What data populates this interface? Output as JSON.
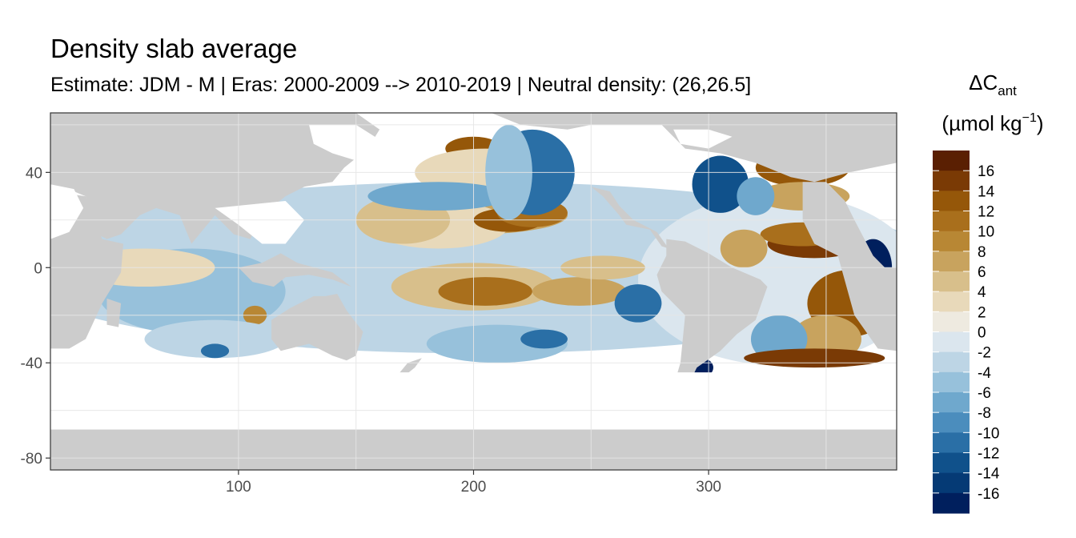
{
  "chart_data": {
    "type": "heatmap",
    "title": "Density slab average",
    "subtitle": "Estimate: JDM - M | Eras: 2000-2009 --> 2010-2019 | Neutral density: (26,26.5]",
    "xlim": [
      20,
      380
    ],
    "ylim": [
      -85,
      65
    ],
    "x_ticks": [
      100,
      200,
      300
    ],
    "y_ticks": [
      -80,
      -40,
      0,
      40
    ],
    "x_gridlines": [
      100,
      150,
      200,
      250,
      300,
      350
    ],
    "y_gridlines": [
      -80,
      -60,
      -40,
      -20,
      0,
      20,
      40,
      60
    ],
    "land_color": "#cccccc",
    "no_data_color": "#ffffff",
    "legend": {
      "title_main": "ΔC",
      "title_sub": "ant",
      "unit_prefix": "(µmol kg",
      "unit_sup": "−1",
      "unit_suffix": ")",
      "placement": "right",
      "tick_labels": [
        "16",
        "14",
        "12",
        "10",
        "8",
        "6",
        "4",
        "2",
        "0",
        "-2",
        "-4",
        "-6",
        "-8",
        "-10",
        "-12",
        "-14",
        "-16"
      ],
      "colors": [
        "#5a1f02",
        "#7a3a05",
        "#955709",
        "#a96f1c",
        "#b88734",
        "#c8a35e",
        "#d8bf8b",
        "#e8d9ba",
        "#eeeae0",
        "#dbe6ee",
        "#bdd5e5",
        "#97c1db",
        "#6fa8cd",
        "#4b8dbd",
        "#2a6fa6",
        "#10518b",
        "#053a75",
        "#001f5d"
      ]
    },
    "regions": [
      {
        "kind": "land",
        "pts": [
          [
            20,
            65
          ],
          [
            380,
            65
          ],
          [
            380,
            44
          ],
          [
            360,
            40
          ],
          [
            345,
            36
          ],
          [
            335,
            38
          ],
          [
            320,
            44
          ],
          [
            305,
            48
          ],
          [
            290,
            50
          ],
          [
            280,
            60
          ],
          [
            250,
            60
          ],
          [
            240,
            58
          ],
          [
            220,
            60
          ],
          [
            205,
            66
          ]
        ]
      },
      {
        "kind": "land",
        "pts": [
          [
            20,
            65
          ],
          [
            150,
            65
          ],
          [
            160,
            58
          ],
          [
            155,
            50
          ],
          [
            145,
            42
          ],
          [
            140,
            36
          ],
          [
            128,
            34
          ],
          [
            120,
            30
          ],
          [
            110,
            22
          ],
          [
            105,
            12
          ],
          [
            98,
            14
          ],
          [
            90,
            22
          ],
          [
            80,
            10
          ],
          [
            75,
            22
          ],
          [
            65,
            25
          ],
          [
            58,
            22
          ],
          [
            50,
            14
          ],
          [
            44,
            12
          ],
          [
            40,
            14
          ],
          [
            35,
            30
          ],
          [
            30,
            32
          ],
          [
            20,
            32
          ]
        ]
      },
      {
        "kind": "land",
        "pts": [
          [
            20,
            32
          ],
          [
            35,
            30
          ],
          [
            42,
            12
          ],
          [
            51,
            10
          ],
          [
            50,
            -2
          ],
          [
            42,
            -15
          ],
          [
            35,
            -30
          ],
          [
            28,
            -34
          ],
          [
            20,
            -34
          ]
        ]
      },
      {
        "kind": "land",
        "pts": [
          [
            44,
            -13
          ],
          [
            50,
            -15
          ],
          [
            49,
            -25
          ],
          [
            44,
            -24
          ]
        ]
      },
      {
        "kind": "land",
        "pts": [
          [
            95,
            5
          ],
          [
            106,
            -6
          ],
          [
            115,
            -8
          ],
          [
            120,
            -4
          ],
          [
            130,
            -3
          ],
          [
            140,
            -5
          ],
          [
            148,
            -8
          ],
          [
            140,
            -2
          ],
          [
            125,
            2
          ],
          [
            118,
            6
          ],
          [
            110,
            2
          ],
          [
            100,
            0
          ]
        ]
      },
      {
        "kind": "land",
        "pts": [
          [
            114,
            -22
          ],
          [
            122,
            -17
          ],
          [
            132,
            -12
          ],
          [
            137,
            -12
          ],
          [
            142,
            -11
          ],
          [
            146,
            -18
          ],
          [
            153,
            -27
          ],
          [
            150,
            -37
          ],
          [
            146,
            -39
          ],
          [
            140,
            -37
          ],
          [
            130,
            -32
          ],
          [
            118,
            -35
          ],
          [
            114,
            -30
          ]
        ]
      },
      {
        "kind": "land",
        "pts": [
          [
            167,
            -46
          ],
          [
            172,
            -40
          ],
          [
            178,
            -38
          ],
          [
            175,
            -42
          ],
          [
            170,
            -46
          ]
        ]
      },
      {
        "kind": "land",
        "pts": [
          [
            250,
            34
          ],
          [
            255,
            30
          ],
          [
            262,
            22
          ],
          [
            265,
            18
          ],
          [
            275,
            16
          ],
          [
            280,
            9
          ],
          [
            283,
            8
          ],
          [
            278,
            15
          ],
          [
            268,
            20
          ],
          [
            262,
            26
          ],
          [
            258,
            32
          ]
        ]
      },
      {
        "kind": "land",
        "pts": [
          [
            282,
            12
          ],
          [
            290,
            11
          ],
          [
            300,
            6
          ],
          [
            310,
            0
          ],
          [
            322,
            -5
          ],
          [
            325,
            -8
          ],
          [
            320,
            -22
          ],
          [
            312,
            -28
          ],
          [
            305,
            -35
          ],
          [
            295,
            -42
          ],
          [
            290,
            -52
          ],
          [
            290,
            -55
          ],
          [
            285,
            -50
          ],
          [
            288,
            -40
          ],
          [
            290,
            -20
          ],
          [
            280,
            -10
          ],
          [
            278,
            -3
          ],
          [
            282,
            5
          ]
        ]
      },
      {
        "kind": "land",
        "pts": [
          [
            340,
            36
          ],
          [
            350,
            36
          ],
          [
            358,
            28
          ],
          [
            362,
            20
          ],
          [
            370,
            5
          ],
          [
            375,
            0
          ],
          [
            380,
            0
          ],
          [
            380,
            -35
          ],
          [
            372,
            -34
          ],
          [
            362,
            -20
          ],
          [
            355,
            5
          ],
          [
            345,
            10
          ],
          [
            340,
            20
          ]
        ]
      },
      {
        "kind": "land",
        "pts": [
          [
            20,
            -68
          ],
          [
            380,
            -68
          ],
          [
            380,
            -85
          ],
          [
            20,
            -85
          ]
        ]
      },
      {
        "kind": "nodata",
        "pts": [
          [
            20,
            -44
          ],
          [
            380,
            -44
          ],
          [
            380,
            -68
          ],
          [
            20,
            -68
          ]
        ]
      },
      {
        "kind": "nodata",
        "pts": [
          [
            130,
            60
          ],
          [
            150,
            60
          ],
          [
            158,
            55
          ],
          [
            162,
            45
          ],
          [
            150,
            45
          ],
          [
            140,
            48
          ],
          [
            132,
            52
          ]
        ]
      },
      {
        "kind": "nodata",
        "pts": [
          [
            20,
            35
          ],
          [
            30,
            33
          ],
          [
            34,
            25
          ],
          [
            28,
            15
          ],
          [
            20,
            12
          ]
        ]
      },
      {
        "kind": "nodata",
        "pts": [
          [
            90,
            25
          ],
          [
            120,
            28
          ],
          [
            128,
            20
          ],
          [
            120,
            10
          ],
          [
            110,
            10
          ],
          [
            100,
            18
          ]
        ]
      },
      {
        "kind": "nodata",
        "pts": [
          [
            285,
            58
          ],
          [
            300,
            58
          ],
          [
            310,
            55
          ],
          [
            300,
            50
          ],
          [
            288,
            52
          ]
        ]
      }
    ],
    "blobs": [
      {
        "lon": 200,
        "lat": 0,
        "rx": 200,
        "ry": 36,
        "value": -1
      },
      {
        "lon": 330,
        "lat": -5,
        "rx": 60,
        "ry": 36,
        "value": 0
      },
      {
        "lon": 200,
        "lat": 22,
        "rx": 40,
        "ry": 8,
        "value": 6
      },
      {
        "lon": 185,
        "lat": 18,
        "rx": 30,
        "ry": 10,
        "value": 3
      },
      {
        "lon": 215,
        "lat": 20,
        "rx": 15,
        "ry": 5,
        "value": 13
      },
      {
        "lon": 225,
        "lat": 23,
        "rx": 15,
        "ry": 6,
        "value": 10
      },
      {
        "lon": 170,
        "lat": 20,
        "rx": 20,
        "ry": 10,
        "value": 4
      },
      {
        "lon": 200,
        "lat": 50,
        "rx": 12,
        "ry": 5,
        "value": 12
      },
      {
        "lon": 205,
        "lat": 40,
        "rx": 30,
        "ry": 10,
        "value": 3
      },
      {
        "lon": 185,
        "lat": 30,
        "rx": 30,
        "ry": 6,
        "value": -5
      },
      {
        "lon": 225,
        "lat": 40,
        "rx": 18,
        "ry": 18,
        "value": -9
      },
      {
        "lon": 215,
        "lat": 40,
        "rx": 10,
        "ry": 20,
        "value": -3
      },
      {
        "lon": 200,
        "lat": -8,
        "rx": 35,
        "ry": 10,
        "value": 4
      },
      {
        "lon": 205,
        "lat": -10,
        "rx": 20,
        "ry": 6,
        "value": 11
      },
      {
        "lon": 245,
        "lat": -10,
        "rx": 20,
        "ry": 6,
        "value": 6
      },
      {
        "lon": 255,
        "lat": 0,
        "rx": 18,
        "ry": 5,
        "value": 5
      },
      {
        "lon": 270,
        "lat": -15,
        "rx": 10,
        "ry": 8,
        "value": -9
      },
      {
        "lon": 80,
        "lat": -10,
        "rx": 40,
        "ry": 18,
        "value": -3
      },
      {
        "lon": 60,
        "lat": 0,
        "rx": 30,
        "ry": 8,
        "value": 2
      },
      {
        "lon": 107,
        "lat": -20,
        "rx": 5,
        "ry": 4,
        "value": 9
      },
      {
        "lon": 90,
        "lat": -30,
        "rx": 30,
        "ry": 8,
        "value": -2
      },
      {
        "lon": 210,
        "lat": -32,
        "rx": 30,
        "ry": 8,
        "value": -4
      },
      {
        "lon": 230,
        "lat": -30,
        "rx": 10,
        "ry": 4,
        "value": -10
      },
      {
        "lon": 340,
        "lat": 42,
        "rx": 20,
        "ry": 8,
        "value": 12
      },
      {
        "lon": 340,
        "lat": 30,
        "rx": 20,
        "ry": 6,
        "value": 7
      },
      {
        "lon": 345,
        "lat": 10,
        "rx": 20,
        "ry": 6,
        "value": 14
      },
      {
        "lon": 340,
        "lat": 14,
        "rx": 18,
        "ry": 5,
        "value": 10
      },
      {
        "lon": 305,
        "lat": 35,
        "rx": 12,
        "ry": 12,
        "value": -11
      },
      {
        "lon": 320,
        "lat": 30,
        "rx": 8,
        "ry": 8,
        "value": -6
      },
      {
        "lon": 315,
        "lat": 8,
        "rx": 10,
        "ry": 8,
        "value": 6
      },
      {
        "lon": 370,
        "lat": 0,
        "rx": 8,
        "ry": 12,
        "value": -16
      },
      {
        "lon": 360,
        "lat": -15,
        "rx": 18,
        "ry": 14,
        "value": 13
      },
      {
        "lon": 350,
        "lat": -30,
        "rx": 15,
        "ry": 10,
        "value": 6
      },
      {
        "lon": 330,
        "lat": -30,
        "rx": 12,
        "ry": 10,
        "value": -5
      },
      {
        "lon": 345,
        "lat": -38,
        "rx": 30,
        "ry": 4,
        "value": 14
      },
      {
        "lon": 297,
        "lat": -42,
        "rx": 5,
        "ry": 4,
        "value": -15
      },
      {
        "lon": 90,
        "lat": -35,
        "rx": 6,
        "ry": 3,
        "value": -9
      }
    ]
  }
}
